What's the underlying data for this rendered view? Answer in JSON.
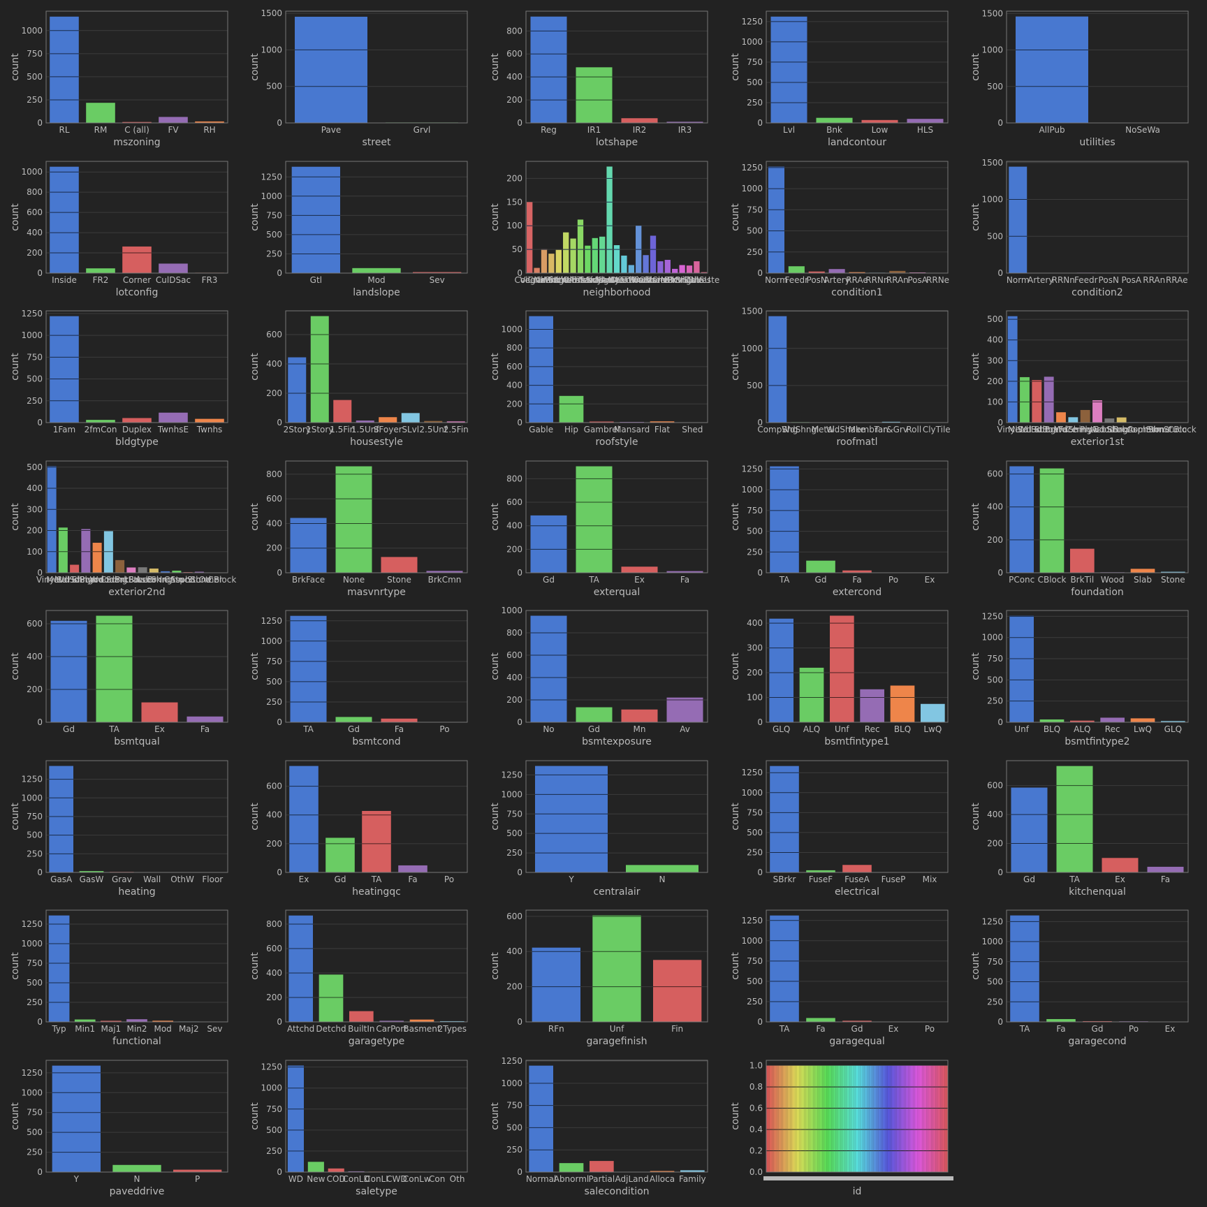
{
  "palette": [
    "#4878d0",
    "#6acc64",
    "#d65f5f",
    "#956cb4",
    "#ee854a",
    "#82c6e2",
    "#8c613c",
    "#dc7ec0",
    "#797979",
    "#d5bb67"
  ],
  "colors": {
    "background": "#222222",
    "axes_edge": "#777777",
    "grid": "#3c3c3c",
    "text": "#bbbbbb"
  },
  "grid": true,
  "ylabel": "count",
  "chart_data": [
    {
      "type": "bar",
      "xlabel": "mszoning",
      "categories": [
        "RL",
        "RM",
        "C (all)",
        "FV",
        "RH"
      ],
      "values": [
        1151,
        218,
        10,
        65,
        16
      ],
      "ylim": [
        0,
        1210
      ],
      "yticks": [
        0,
        250,
        500,
        750,
        1000
      ]
    },
    {
      "type": "bar",
      "xlabel": "street",
      "categories": [
        "Pave",
        "Grvl"
      ],
      "values": [
        1454,
        6
      ],
      "ylim": [
        0,
        1530
      ],
      "yticks": [
        0,
        500,
        1000,
        1500
      ]
    },
    {
      "type": "bar",
      "xlabel": "lotshape",
      "categories": [
        "Reg",
        "IR1",
        "IR2",
        "IR3"
      ],
      "values": [
        925,
        484,
        41,
        10
      ],
      "ylim": [
        0,
        972
      ],
      "yticks": [
        0,
        200,
        400,
        600,
        800
      ]
    },
    {
      "type": "bar",
      "xlabel": "landcontour",
      "categories": [
        "Lvl",
        "Bnk",
        "Low",
        "HLS"
      ],
      "values": [
        1311,
        63,
        36,
        50
      ],
      "ylim": [
        0,
        1378
      ],
      "yticks": [
        0,
        250,
        500,
        750,
        1000,
        1250
      ]
    },
    {
      "type": "bar",
      "xlabel": "utilities",
      "categories": [
        "AllPub",
        "NoSeWa"
      ],
      "values": [
        1459,
        1
      ],
      "ylim": [
        0,
        1532
      ],
      "yticks": [
        0,
        500,
        1000,
        1500
      ]
    },
    {
      "type": "bar",
      "xlabel": "lotconfig",
      "categories": [
        "Inside",
        "FR2",
        "Corner",
        "CulDSac",
        "FR3"
      ],
      "values": [
        1052,
        47,
        263,
        94,
        4
      ],
      "ylim": [
        0,
        1105
      ],
      "yticks": [
        0,
        200,
        400,
        600,
        800,
        1000
      ]
    },
    {
      "type": "bar",
      "xlabel": "landslope",
      "categories": [
        "Gtl",
        "Mod",
        "Sev"
      ],
      "values": [
        1382,
        65,
        13
      ],
      "ylim": [
        0,
        1452
      ],
      "yticks": [
        0,
        250,
        500,
        750,
        1000,
        1250
      ]
    },
    {
      "type": "bar",
      "xlabel": "neighborhood",
      "categories": [
        "CollgCr",
        "Veenker",
        "Crawfor",
        "NoRidge",
        "Mitchel",
        "Somerst",
        "NWAmes",
        "OldTown",
        "BrkSide",
        "Sawyer",
        "NridgHt",
        "NAmes",
        "SawyerW",
        "IDOTRR",
        "MeadowV",
        "Edwards",
        "Timber",
        "Gilbert",
        "StoneBr",
        "ClearCr",
        "NPkVill",
        "Blmngtn",
        "BrDale",
        "SWISU",
        "Blueste"
      ],
      "values": [
        150,
        11,
        51,
        41,
        49,
        86,
        73,
        113,
        58,
        74,
        77,
        225,
        59,
        37,
        17,
        100,
        38,
        79,
        25,
        28,
        9,
        17,
        16,
        25,
        2
      ],
      "ylim": [
        0,
        236
      ],
      "yticks": [
        0,
        50,
        100,
        150,
        200
      ]
    },
    {
      "type": "bar",
      "xlabel": "condition1",
      "categories": [
        "Norm",
        "Feedr",
        "PosN",
        "Artery",
        "RRAe",
        "RRNn",
        "RRAn",
        "PosA",
        "RRNe"
      ],
      "values": [
        1260,
        81,
        19,
        48,
        11,
        5,
        26,
        8,
        2
      ],
      "ylim": [
        0,
        1323
      ],
      "yticks": [
        0,
        250,
        500,
        750,
        1000,
        1250
      ]
    },
    {
      "type": "bar",
      "xlabel": "condition2",
      "categories": [
        "Norm",
        "Artery",
        "RRNn",
        "Feedr",
        "PosN",
        "PosA",
        "RRAn",
        "RRAe"
      ],
      "values": [
        1445,
        2,
        2,
        6,
        2,
        1,
        1,
        1
      ],
      "ylim": [
        0,
        1517
      ],
      "yticks": [
        0,
        500,
        1000,
        1500
      ]
    },
    {
      "type": "bar",
      "xlabel": "bldgtype",
      "categories": [
        "1Fam",
        "2fmCon",
        "Duplex",
        "TwnhsE",
        "Twnhs"
      ],
      "values": [
        1220,
        31,
        52,
        114,
        43
      ],
      "ylim": [
        0,
        1281
      ],
      "yticks": [
        0,
        250,
        500,
        750,
        1000,
        1250
      ]
    },
    {
      "type": "bar",
      "xlabel": "housestyle",
      "categories": [
        "2Story",
        "1Story",
        "1.5Fin",
        "1.5Unf",
        "SFoyer",
        "SLvl",
        "2.5Unf",
        "2.5Fin"
      ],
      "values": [
        445,
        726,
        154,
        14,
        37,
        65,
        11,
        8
      ],
      "ylim": [
        0,
        762
      ],
      "yticks": [
        0,
        200,
        400,
        600
      ]
    },
    {
      "type": "bar",
      "xlabel": "roofstyle",
      "categories": [
        "Gable",
        "Hip",
        "Gambrel",
        "Mansard",
        "Flat",
        "Shed"
      ],
      "values": [
        1141,
        286,
        11,
        7,
        13,
        2
      ],
      "ylim": [
        0,
        1198
      ],
      "yticks": [
        0,
        200,
        400,
        600,
        800,
        1000
      ]
    },
    {
      "type": "bar",
      "xlabel": "roofmatl",
      "categories": [
        "CompShg",
        "WdShngl",
        "Metal",
        "WdShake",
        "Membran",
        "Tar&Grv",
        "Roll",
        "ClyTile"
      ],
      "values": [
        1434,
        6,
        1,
        5,
        1,
        11,
        1,
        1
      ],
      "ylim": [
        0,
        1506
      ],
      "yticks": [
        0,
        500,
        1000,
        1500
      ]
    },
    {
      "type": "bar",
      "xlabel": "exterior1st",
      "categories": [
        "VinylSd",
        "MetalSd",
        "Wd Sdng",
        "HdBoard",
        "BrkFace",
        "WdShing",
        "CemntBd",
        "Plywood",
        "AsbShng",
        "Stucco",
        "BrkComm",
        "AsphShn",
        "Stone",
        "ImStucc",
        "CBlock"
      ],
      "values": [
        515,
        220,
        206,
        222,
        50,
        26,
        61,
        108,
        20,
        25,
        2,
        1,
        2,
        1,
        1
      ],
      "ylim": [
        0,
        541
      ],
      "yticks": [
        0,
        100,
        200,
        300,
        400,
        500
      ]
    },
    {
      "type": "bar",
      "xlabel": "exterior2nd",
      "categories": [
        "VinylSd",
        "MetalSd",
        "Wd Shng",
        "HdBoard",
        "Plywood",
        "Wd Sdng",
        "CmentBd",
        "BrkFace",
        "Stucco",
        "AsbShng",
        "Brk Cmn",
        "ImStucc",
        "AsphShn",
        "Stone",
        "Other",
        "CBlock"
      ],
      "values": [
        504,
        214,
        38,
        207,
        142,
        197,
        60,
        25,
        26,
        20,
        7,
        10,
        3,
        5,
        1,
        1
      ],
      "ylim": [
        0,
        529
      ],
      "yticks": [
        0,
        100,
        200,
        300,
        400,
        500
      ]
    },
    {
      "type": "bar",
      "xlabel": "masvnrtype",
      "categories": [
        "BrkFace",
        "None",
        "Stone",
        "BrkCmn"
      ],
      "values": [
        445,
        864,
        128,
        15
      ],
      "ylim": [
        0,
        907
      ],
      "yticks": [
        0,
        200,
        400,
        600,
        800
      ]
    },
    {
      "type": "bar",
      "xlabel": "exterqual",
      "categories": [
        "Gd",
        "TA",
        "Ex",
        "Fa"
      ],
      "values": [
        488,
        906,
        52,
        14
      ],
      "ylim": [
        0,
        951
      ],
      "yticks": [
        0,
        200,
        400,
        600,
        800
      ]
    },
    {
      "type": "bar",
      "xlabel": "extercond",
      "categories": [
        "TA",
        "Gd",
        "Fa",
        "Po",
        "Ex"
      ],
      "values": [
        1282,
        146,
        28,
        1,
        3
      ],
      "ylim": [
        0,
        1346
      ],
      "yticks": [
        0,
        250,
        500,
        750,
        1000,
        1250
      ]
    },
    {
      "type": "bar",
      "xlabel": "foundation",
      "categories": [
        "PConc",
        "CBlock",
        "BrkTil",
        "Wood",
        "Slab",
        "Stone"
      ],
      "values": [
        647,
        634,
        146,
        3,
        24,
        6
      ],
      "ylim": [
        0,
        679
      ],
      "yticks": [
        0,
        200,
        400,
        600
      ]
    },
    {
      "type": "bar",
      "xlabel": "bsmtqual",
      "categories": [
        "Gd",
        "TA",
        "Ex",
        "Fa"
      ],
      "values": [
        618,
        649,
        121,
        35
      ],
      "ylim": [
        0,
        681
      ],
      "yticks": [
        0,
        200,
        400,
        600
      ]
    },
    {
      "type": "bar",
      "xlabel": "bsmtcond",
      "categories": [
        "TA",
        "Gd",
        "Fa",
        "Po"
      ],
      "values": [
        1311,
        65,
        45,
        2
      ],
      "ylim": [
        0,
        1377
      ],
      "yticks": [
        0,
        250,
        500,
        750,
        1000,
        1250
      ]
    },
    {
      "type": "bar",
      "xlabel": "bsmtexposure",
      "categories": [
        "No",
        "Gd",
        "Mn",
        "Av"
      ],
      "values": [
        953,
        134,
        114,
        221
      ],
      "ylim": [
        0,
        1000
      ],
      "yticks": [
        0,
        200,
        400,
        600,
        800,
        1000
      ]
    },
    {
      "type": "bar",
      "xlabel": "bsmtfintype1",
      "categories": [
        "GLQ",
        "ALQ",
        "Unf",
        "Rec",
        "BLQ",
        "LwQ"
      ],
      "values": [
        418,
        220,
        430,
        133,
        148,
        74
      ],
      "ylim": [
        0,
        451
      ],
      "yticks": [
        0,
        100,
        200,
        300,
        400
      ]
    },
    {
      "type": "bar",
      "xlabel": "bsmtfintype2",
      "categories": [
        "Unf",
        "BLQ",
        "ALQ",
        "Rec",
        "LwQ",
        "GLQ"
      ],
      "values": [
        1256,
        33,
        19,
        54,
        46,
        14
      ],
      "ylim": [
        0,
        1319
      ],
      "yticks": [
        0,
        250,
        500,
        750,
        1000,
        1250
      ]
    },
    {
      "type": "bar",
      "xlabel": "heating",
      "categories": [
        "GasA",
        "GasW",
        "Grav",
        "Wall",
        "OthW",
        "Floor"
      ],
      "values": [
        1428,
        18,
        7,
        4,
        2,
        1
      ],
      "ylim": [
        0,
        1499
      ],
      "yticks": [
        0,
        250,
        500,
        750,
        1000,
        1250
      ]
    },
    {
      "type": "bar",
      "xlabel": "heatingqc",
      "categories": [
        "Ex",
        "Gd",
        "TA",
        "Fa",
        "Po"
      ],
      "values": [
        741,
        241,
        428,
        49,
        1
      ],
      "ylim": [
        0,
        778
      ],
      "yticks": [
        0,
        200,
        400,
        600
      ]
    },
    {
      "type": "bar",
      "xlabel": "centralair",
      "categories": [
        "Y",
        "N"
      ],
      "values": [
        1365,
        95
      ],
      "ylim": [
        0,
        1433
      ],
      "yticks": [
        0,
        250,
        500,
        750,
        1000,
        1250
      ]
    },
    {
      "type": "bar",
      "xlabel": "electrical",
      "categories": [
        "SBrkr",
        "FuseF",
        "FuseA",
        "FuseP",
        "Mix"
      ],
      "values": [
        1334,
        27,
        94,
        3,
        1
      ],
      "ylim": [
        0,
        1401
      ],
      "yticks": [
        0,
        250,
        500,
        750,
        1000,
        1250
      ]
    },
    {
      "type": "bar",
      "xlabel": "kitchenqual",
      "categories": [
        "Gd",
        "TA",
        "Ex",
        "Fa"
      ],
      "values": [
        586,
        735,
        100,
        39
      ],
      "ylim": [
        0,
        772
      ],
      "yticks": [
        0,
        200,
        400,
        600
      ]
    },
    {
      "type": "bar",
      "xlabel": "functional",
      "categories": [
        "Typ",
        "Min1",
        "Maj1",
        "Min2",
        "Mod",
        "Maj2",
        "Sev"
      ],
      "values": [
        1360,
        31,
        14,
        34,
        15,
        5,
        1
      ],
      "ylim": [
        0,
        1428
      ],
      "yticks": [
        0,
        250,
        500,
        750,
        1000,
        1250
      ]
    },
    {
      "type": "bar",
      "xlabel": "garagetype",
      "categories": [
        "Attchd",
        "Detchd",
        "BuiltIn",
        "CarPort",
        "Basment",
        "2Types"
      ],
      "values": [
        870,
        387,
        88,
        9,
        19,
        6
      ],
      "ylim": [
        0,
        914
      ],
      "yticks": [
        0,
        200,
        400,
        600,
        800
      ]
    },
    {
      "type": "bar",
      "xlabel": "garagefinish",
      "categories": [
        "RFn",
        "Unf",
        "Fin"
      ],
      "values": [
        422,
        605,
        352
      ],
      "ylim": [
        0,
        635
      ],
      "yticks": [
        0,
        200,
        400,
        600
      ]
    },
    {
      "type": "bar",
      "xlabel": "garagequal",
      "categories": [
        "TA",
        "Fa",
        "Gd",
        "Ex",
        "Po"
      ],
      "values": [
        1311,
        48,
        14,
        3,
        3
      ],
      "ylim": [
        0,
        1377
      ],
      "yticks": [
        0,
        250,
        500,
        750,
        1000,
        1250
      ]
    },
    {
      "type": "bar",
      "xlabel": "garagecond",
      "categories": [
        "TA",
        "Fa",
        "Gd",
        "Po",
        "Ex"
      ],
      "values": [
        1326,
        35,
        9,
        7,
        2
      ],
      "ylim": [
        0,
        1392
      ],
      "yticks": [
        0,
        250,
        500,
        750,
        1000,
        1250
      ]
    },
    {
      "type": "bar",
      "xlabel": "paveddrive",
      "categories": [
        "Y",
        "N",
        "P"
      ],
      "values": [
        1340,
        90,
        30
      ],
      "ylim": [
        0,
        1407
      ],
      "yticks": [
        0,
        250,
        500,
        750,
        1000,
        1250
      ]
    },
    {
      "type": "bar",
      "xlabel": "saletype",
      "categories": [
        "WD",
        "New",
        "COD",
        "ConLD",
        "ConLI",
        "CWD",
        "ConLw",
        "Con",
        "Oth"
      ],
      "values": [
        1267,
        122,
        43,
        9,
        5,
        4,
        5,
        2,
        3
      ],
      "ylim": [
        0,
        1330
      ],
      "yticks": [
        0,
        250,
        500,
        750,
        1000,
        1250
      ]
    },
    {
      "type": "bar",
      "xlabel": "salecondition",
      "categories": [
        "Normal",
        "Abnorml",
        "Partial",
        "AdjLand",
        "Alloca",
        "Family"
      ],
      "values": [
        1198,
        101,
        125,
        4,
        12,
        20
      ],
      "ylim": [
        0,
        1258
      ],
      "yticks": [
        0,
        250,
        500,
        750,
        1000,
        1250
      ]
    },
    {
      "type": "bar",
      "xlabel": "id",
      "categories": [],
      "bar_count": 120,
      "uniform_value": 1,
      "hide_tick_labels": true,
      "ylim": [
        0,
        1.05
      ],
      "yticks": [
        0,
        0.2,
        0.4,
        0.6,
        0.8,
        1.0
      ],
      "ytick_labels": [
        "0.0",
        "0.2",
        "0.4",
        "0.6",
        "0.8",
        "1.0"
      ],
      "palette": "husl"
    }
  ]
}
